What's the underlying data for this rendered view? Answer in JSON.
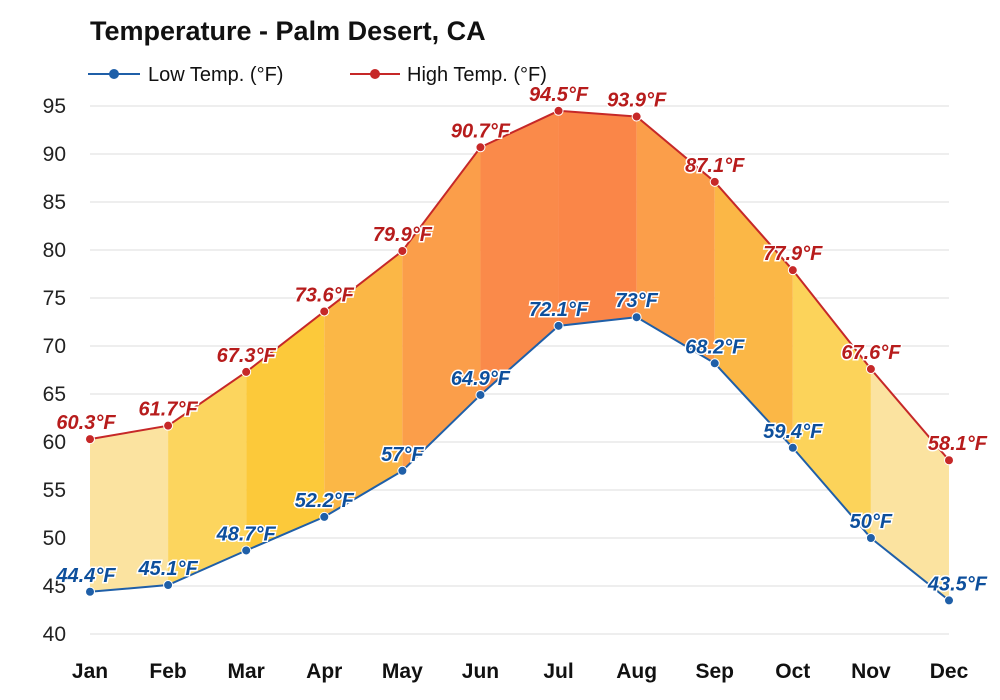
{
  "chart_data": {
    "type": "area",
    "title": "Temperature - Palm Desert, CA",
    "categories": [
      "Jan",
      "Feb",
      "Mar",
      "Apr",
      "May",
      "Jun",
      "Jul",
      "Aug",
      "Sep",
      "Oct",
      "Nov",
      "Dec"
    ],
    "series": [
      {
        "name": "Low Temp. (°F)",
        "color": "#1f5fa8",
        "values": [
          44.4,
          45.1,
          48.7,
          52.2,
          57,
          64.9,
          72.1,
          73,
          68.2,
          59.4,
          50,
          43.5
        ],
        "labels": [
          "44.4°F",
          "45.1°F",
          "48.7°F",
          "52.2°F",
          "57°F",
          "64.9°F",
          "72.1°F",
          "73°F",
          "68.2°F",
          "59.4°F",
          "50°F",
          "43.5°F"
        ]
      },
      {
        "name": "High Temp. (°F)",
        "color": "#c62828",
        "values": [
          60.3,
          61.7,
          67.3,
          73.6,
          79.9,
          90.7,
          94.5,
          93.9,
          87.1,
          77.9,
          67.6,
          58.1
        ],
        "labels": [
          "60.3°F",
          "61.7°F",
          "67.3°F",
          "73.6°F",
          "79.9°F",
          "90.7°F",
          "94.5°F",
          "93.9°F",
          "87.1°F",
          "77.9°F",
          "67.6°F",
          "58.1°F"
        ]
      }
    ],
    "ylim": [
      40,
      95
    ],
    "yticks": [
      "40",
      "45",
      "50",
      "55",
      "60",
      "65",
      "70",
      "75",
      "80",
      "85",
      "90",
      "95"
    ],
    "band_colors": [
      "#fbe3a0",
      "#fcd55e",
      "#fcc93a",
      "#fbb746",
      "#fb9e4a",
      "#fa8a4a",
      "#fa8648",
      "#fb9e4a",
      "#fbb746",
      "#fcd35a",
      "#fbe3a0"
    ],
    "grid": true,
    "legend_position": "top-left"
  }
}
